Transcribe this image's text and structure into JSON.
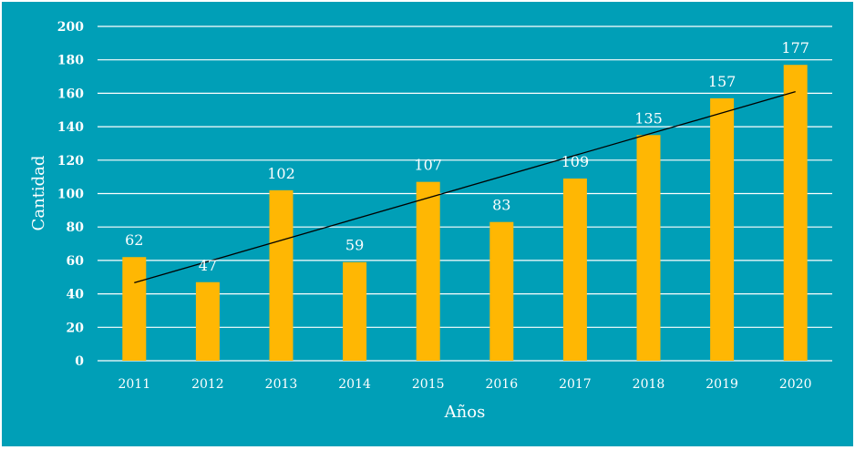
{
  "chart_data": {
    "type": "bar",
    "title": "",
    "xlabel": "Años",
    "ylabel": "Cantidad",
    "ylim": [
      0,
      200
    ],
    "yticks": [
      0,
      20,
      40,
      60,
      80,
      100,
      120,
      140,
      160,
      180,
      200
    ],
    "categories": [
      "2011",
      "2012",
      "2013",
      "2014",
      "2015",
      "2016",
      "2017",
      "2018",
      "2019",
      "2020"
    ],
    "values": [
      62,
      47,
      102,
      59,
      107,
      83,
      109,
      135,
      157,
      177
    ],
    "data_labels": [
      "62",
      "47",
      "102",
      "59",
      "107",
      "83",
      "109",
      "135",
      "157",
      "177"
    ],
    "trendline": {
      "type": "linear",
      "color": "#000000"
    },
    "grid": true,
    "legend": "none",
    "colors": {
      "background": "#009fb7",
      "bar": "#ffb703",
      "grid": "#ffffff",
      "text": "#ffffff"
    }
  }
}
